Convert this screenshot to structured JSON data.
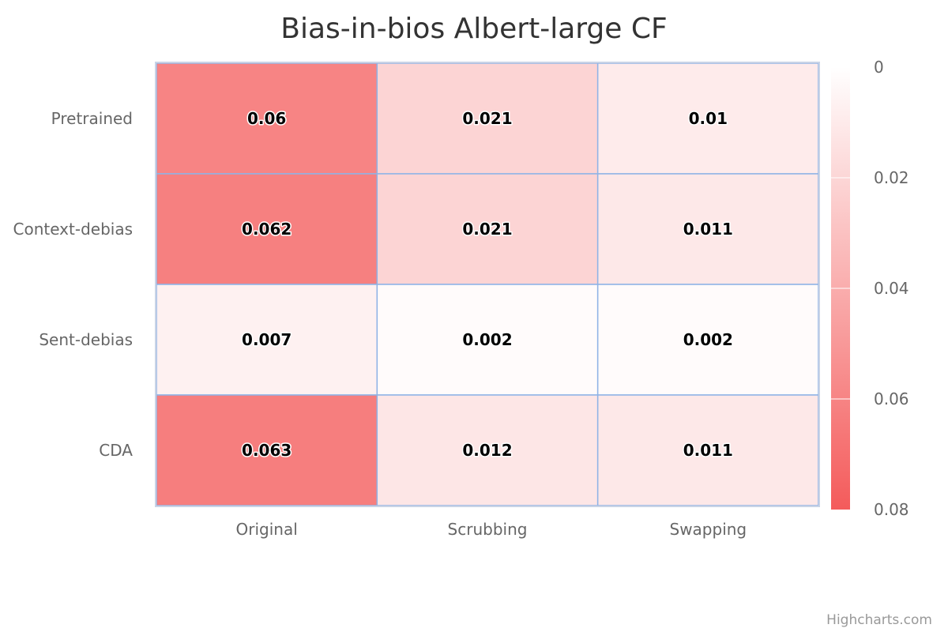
{
  "chart_data": {
    "type": "heatmap",
    "title": "Bias-in-bios Albert-large CF",
    "x_categories": [
      "Original",
      "Scrubbing",
      "Swapping"
    ],
    "y_categories": [
      "Pretrained",
      "Context-debias",
      "Sent-debias",
      "CDA"
    ],
    "values": [
      [
        0.06,
        0.021,
        0.01
      ],
      [
        0.062,
        0.021,
        0.011
      ],
      [
        0.007,
        0.002,
        0.002
      ],
      [
        0.063,
        0.012,
        0.011
      ]
    ],
    "color_axis": {
      "min": 0,
      "max": 0.08,
      "min_color": "#ffffff",
      "max_color": "#f45b5b",
      "tick_labels": [
        "0",
        "0.02",
        "0.04",
        "0.06",
        "0.08"
      ],
      "position": "right"
    },
    "cell_border_color": "#8fb3e6",
    "credits": "Highcharts.com"
  }
}
